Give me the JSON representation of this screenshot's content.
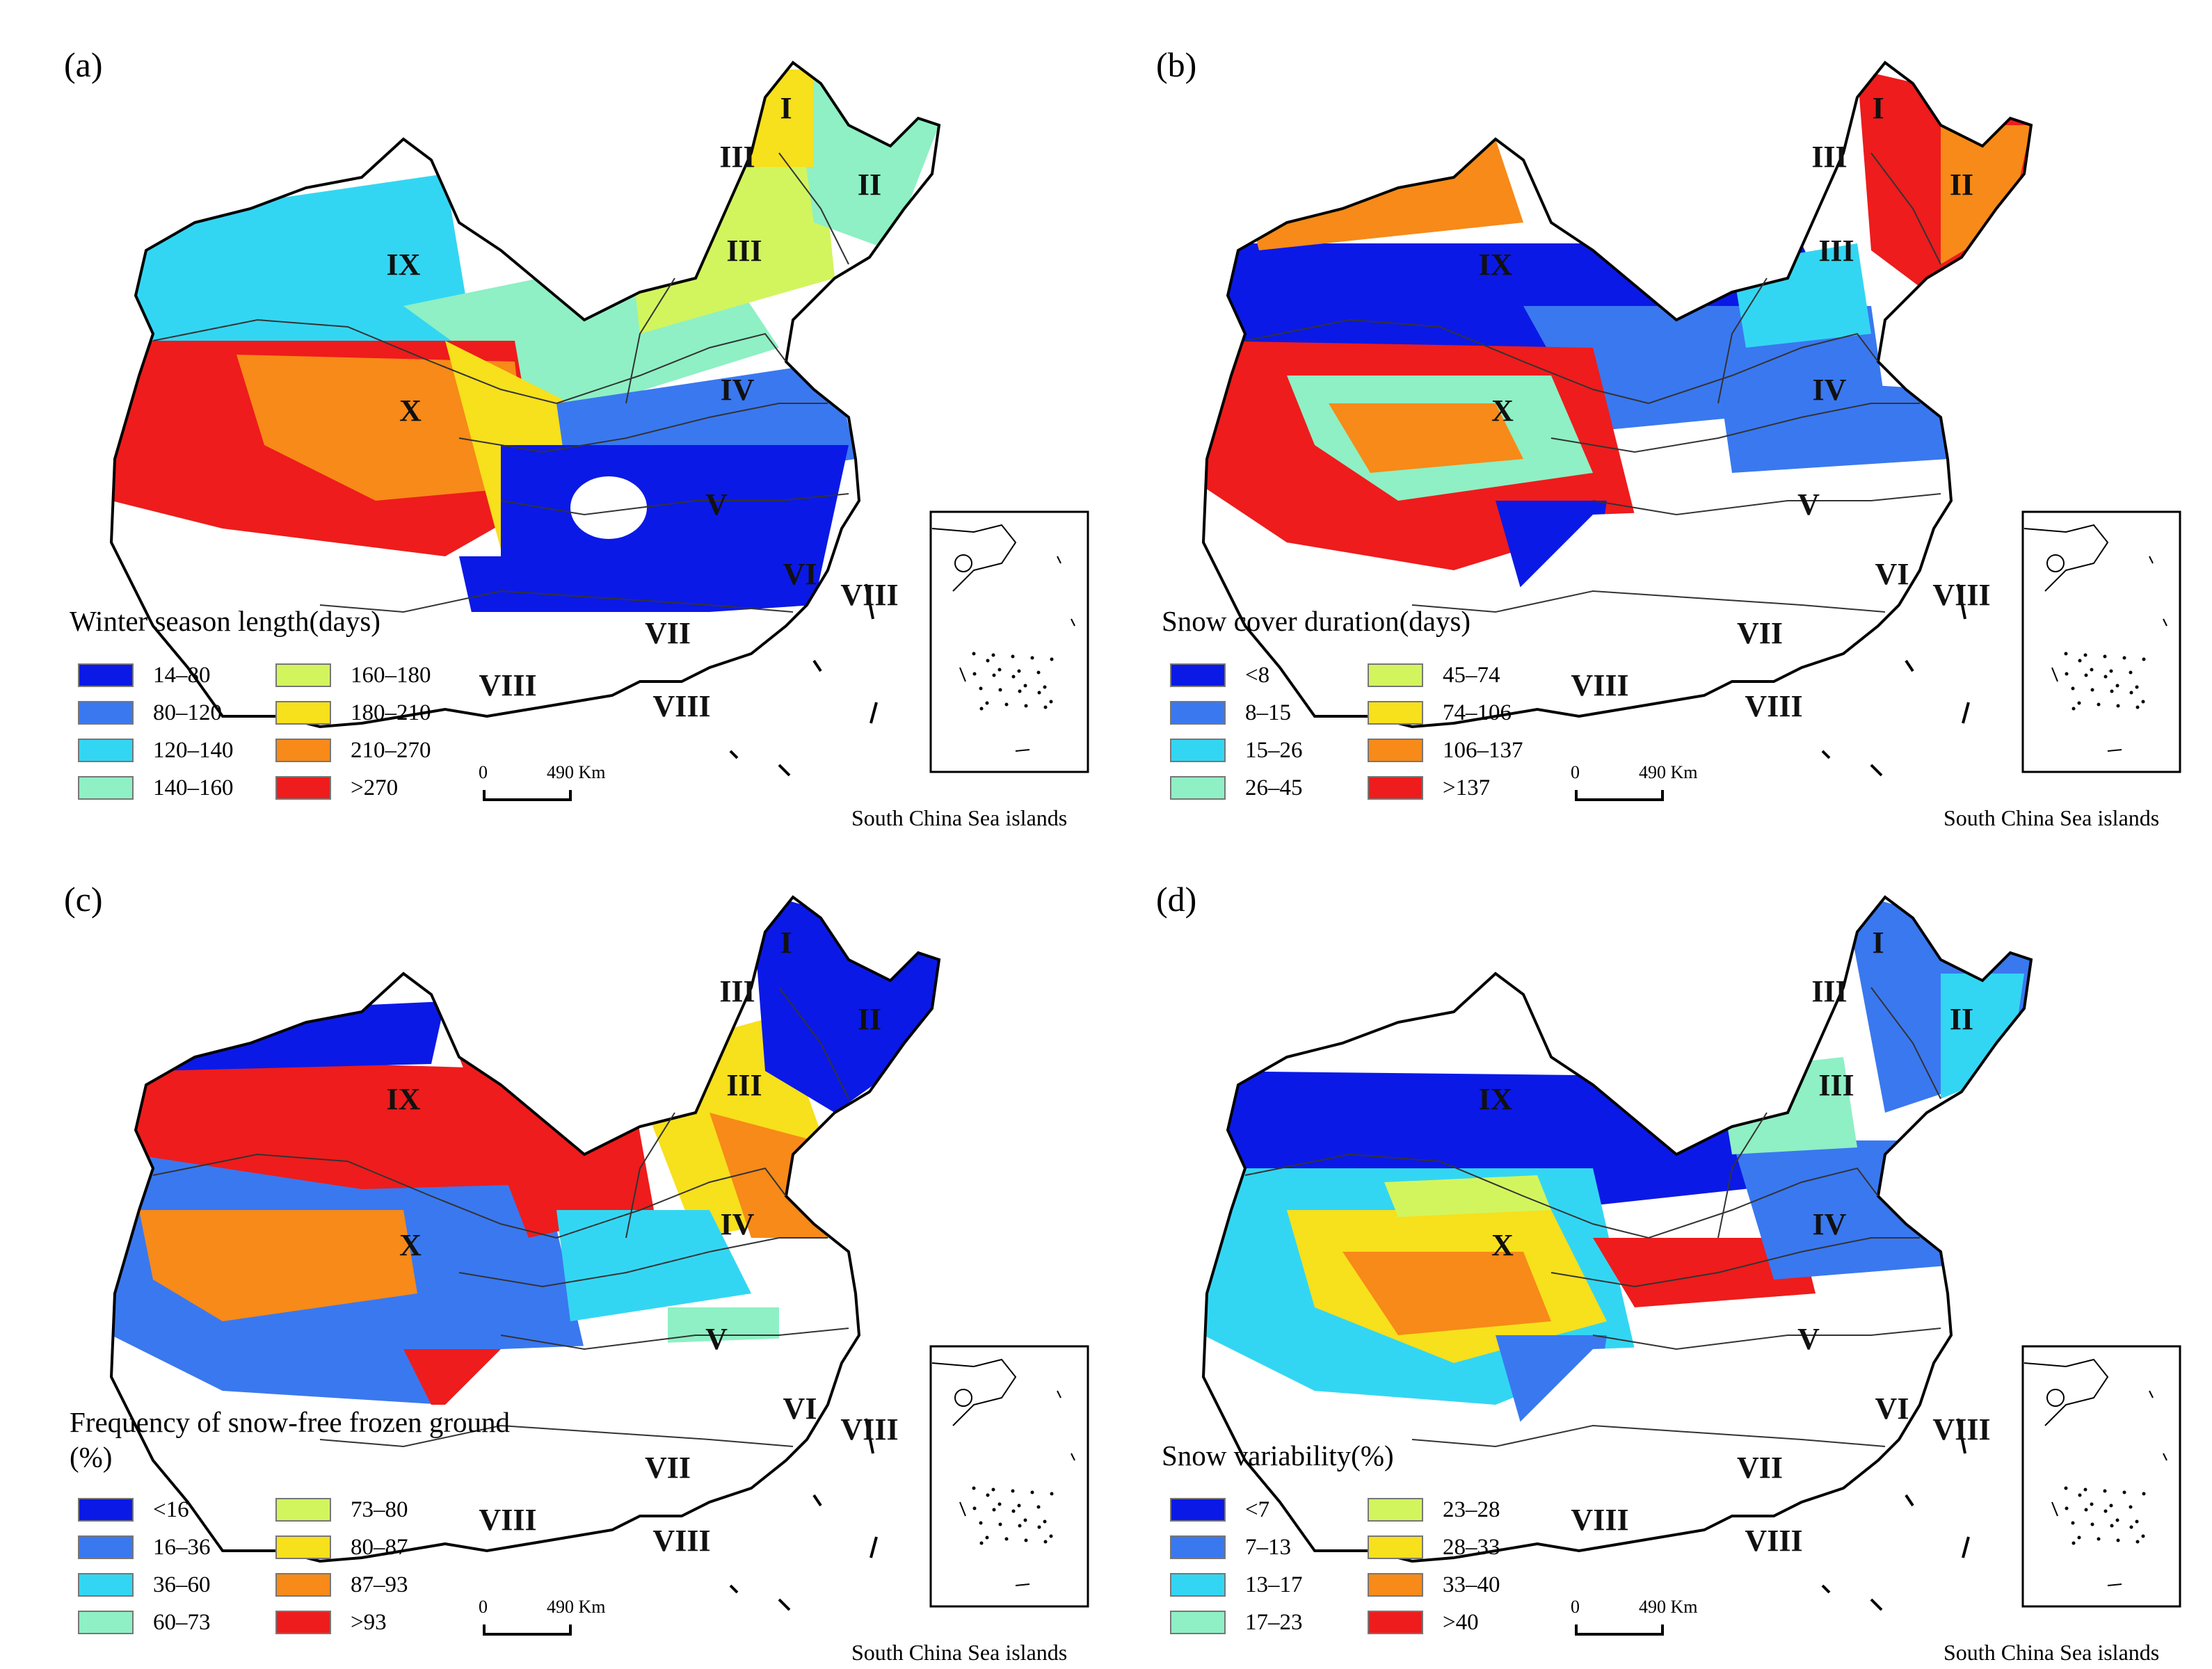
{
  "figure": {
    "panels": [
      {
        "label": "(a)",
        "legend_title": "Winter season length(days)",
        "classes": [
          {
            "label": "14–80",
            "color": "#0b19e6"
          },
          {
            "label": "80–120",
            "color": "#3a78f0"
          },
          {
            "label": "120–140",
            "color": "#33d6f2"
          },
          {
            "label": "140–160",
            "color": "#8ef0c4"
          },
          {
            "label": "160–180",
            "color": "#d2f55e"
          },
          {
            "label": "180–210",
            "color": "#f7e01c"
          },
          {
            "label": "210–270",
            "color": "#f78a18"
          },
          {
            "label": ">270",
            "color": "#ee1c1c"
          }
        ],
        "region_labels": [
          "I",
          "II",
          "III",
          "III",
          "IV",
          "V",
          "VI",
          "VII",
          "VIII",
          "VIII",
          "VIII",
          "IX",
          "X"
        ]
      },
      {
        "label": "(b)",
        "legend_title": "Snow cover duration(days)",
        "classes": [
          {
            "label": "<8",
            "color": "#0b19e6"
          },
          {
            "label": "8–15",
            "color": "#3a78f0"
          },
          {
            "label": "15–26",
            "color": "#33d6f2"
          },
          {
            "label": "26–45",
            "color": "#8ef0c4"
          },
          {
            "label": "45–74",
            "color": "#d2f55e"
          },
          {
            "label": "74–106",
            "color": "#f7e01c"
          },
          {
            "label": "106–137",
            "color": "#f78a18"
          },
          {
            "label": ">137",
            "color": "#ee1c1c"
          }
        ],
        "region_labels": [
          "I",
          "II",
          "III",
          "III",
          "IV",
          "V",
          "VI",
          "VII",
          "VIII",
          "VIII",
          "VIII",
          "IX",
          "X"
        ]
      },
      {
        "label": "(c)",
        "legend_title": "Frequency of snow-free frozen ground (%)",
        "classes": [
          {
            "label": "<16",
            "color": "#0b19e6"
          },
          {
            "label": "16–36",
            "color": "#3a78f0"
          },
          {
            "label": "36–60",
            "color": "#33d6f2"
          },
          {
            "label": "60–73",
            "color": "#8ef0c4"
          },
          {
            "label": "73–80",
            "color": "#d2f55e"
          },
          {
            "label": "80–87",
            "color": "#f7e01c"
          },
          {
            "label": "87–93",
            "color": "#f78a18"
          },
          {
            "label": ">93",
            "color": "#ee1c1c"
          }
        ],
        "region_labels": [
          "I",
          "II",
          "III",
          "III",
          "IV",
          "V",
          "VI",
          "VII",
          "VIII",
          "VIII",
          "VIII",
          "IX",
          "X"
        ]
      },
      {
        "label": "(d)",
        "legend_title": "Snow variability(%)",
        "classes": [
          {
            "label": "<7",
            "color": "#0b19e6"
          },
          {
            "label": "7–13",
            "color": "#3a78f0"
          },
          {
            "label": "13–17",
            "color": "#33d6f2"
          },
          {
            "label": "17–23",
            "color": "#8ef0c4"
          },
          {
            "label": "23–28",
            "color": "#d2f55e"
          },
          {
            "label": "28–33",
            "color": "#f7e01c"
          },
          {
            "label": "33–40",
            "color": "#f78a18"
          },
          {
            "label": ">40",
            "color": "#ee1c1c"
          }
        ],
        "region_labels": [
          "I",
          "II",
          "III",
          "III",
          "IV",
          "V",
          "VI",
          "VII",
          "VIII",
          "VIII",
          "VIII",
          "IX",
          "X"
        ]
      }
    ],
    "scale_zero": "0",
    "scale_text": "490 Km",
    "inset_label": "South China Sea islands"
  }
}
